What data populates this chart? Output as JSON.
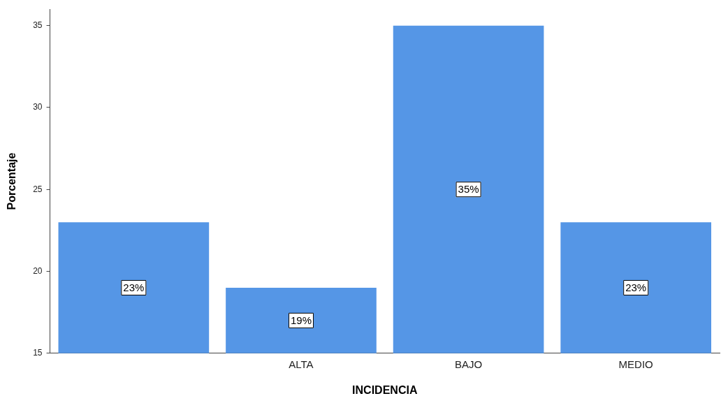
{
  "chart_data": {
    "type": "bar",
    "xlabel": "INCIDENCIA",
    "ylabel": "Porcentaje",
    "categories": [
      null,
      "ALTA",
      "BAJO",
      "MEDIO"
    ],
    "values": [
      23,
      19,
      35,
      23
    ],
    "color": "#5596e6",
    "value_labels": [
      "23%",
      "19%",
      "35%",
      "23%"
    ],
    "ylim": [
      15,
      36
    ],
    "yticks": [
      15,
      20,
      25,
      30,
      35
    ],
    "grid": false,
    "legend": false
  }
}
